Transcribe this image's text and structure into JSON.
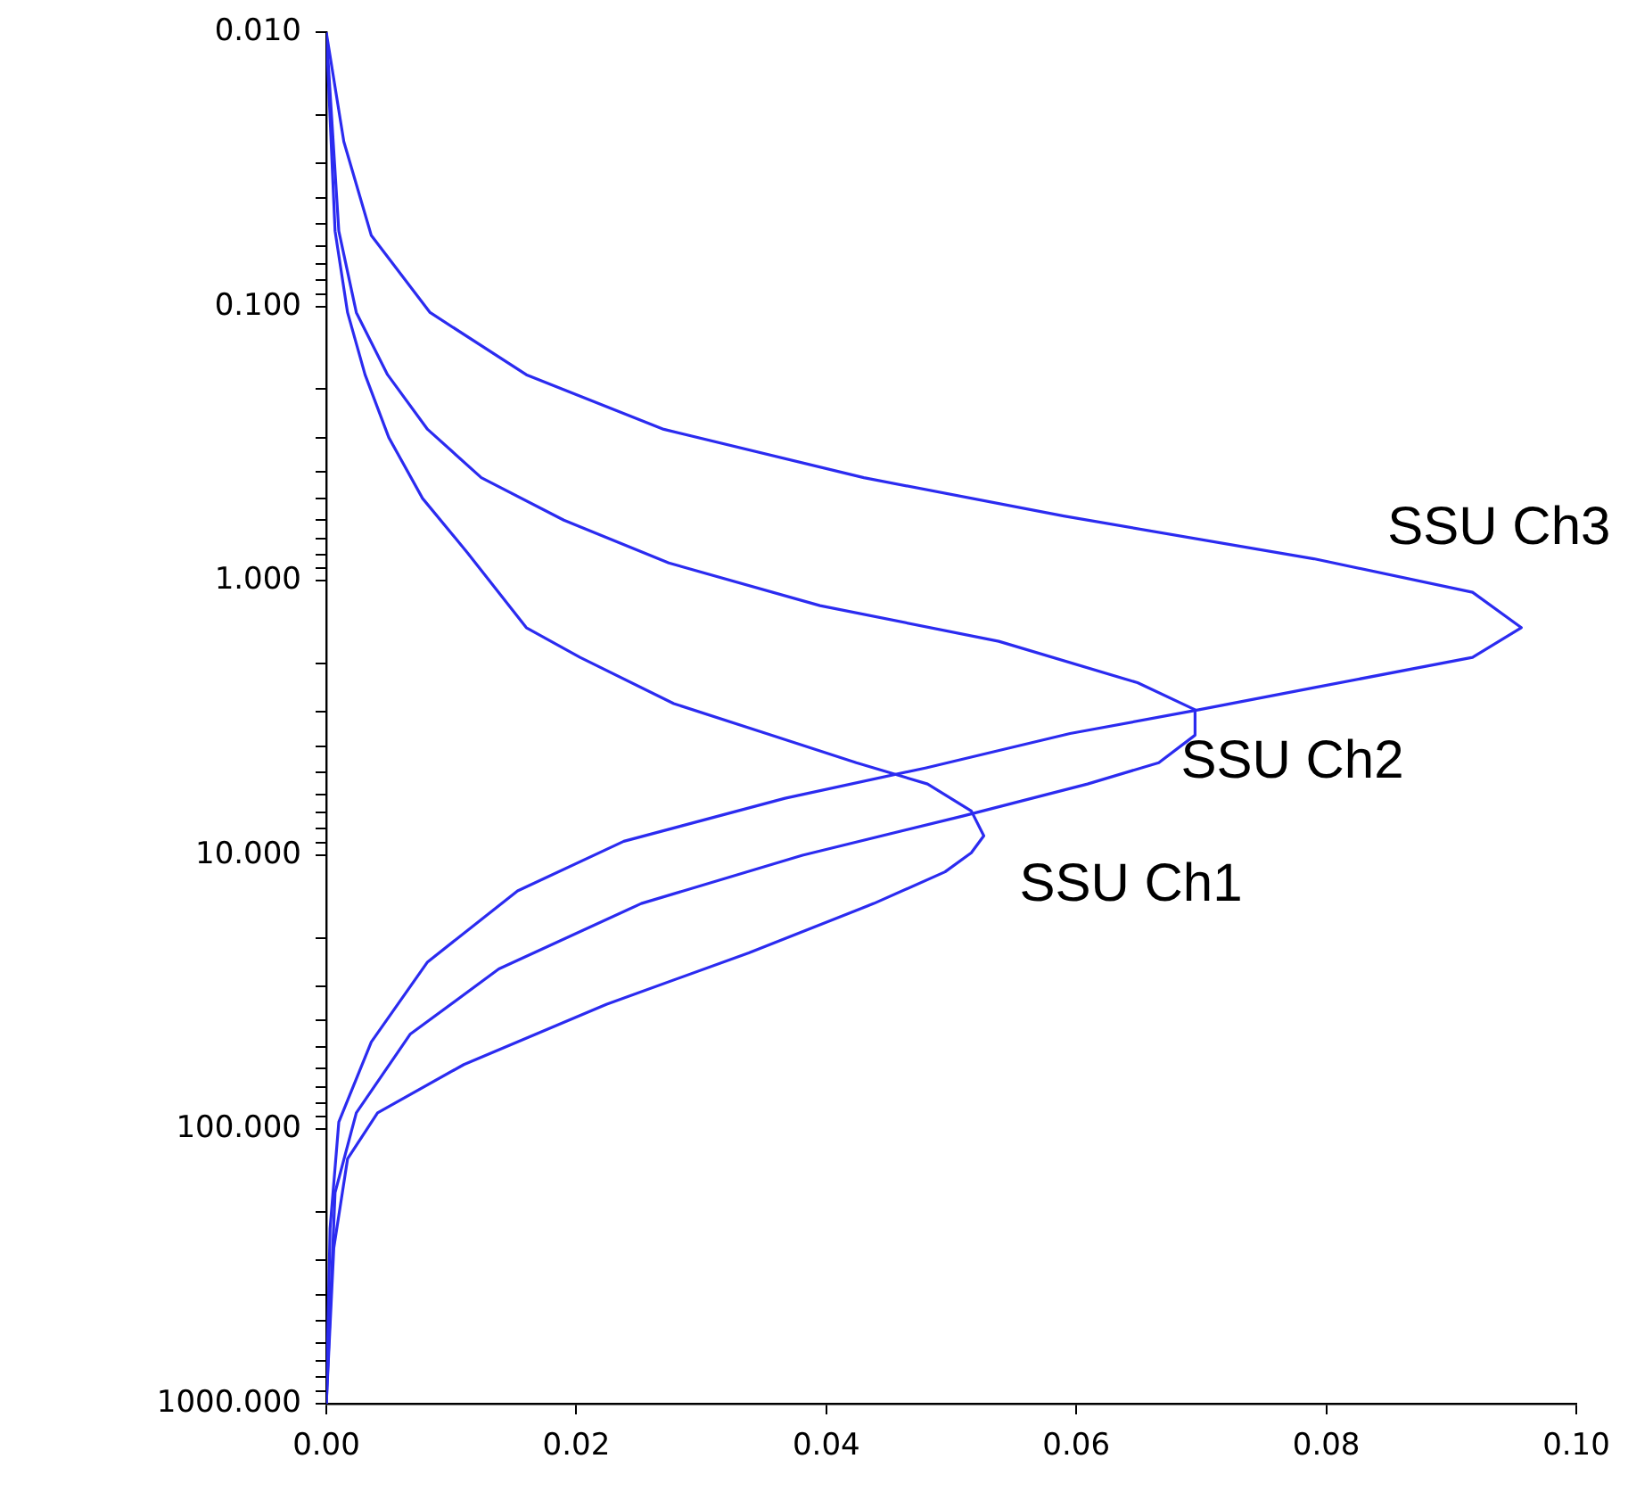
{
  "chart_data": {
    "type": "line",
    "log": "y",
    "grid": false,
    "marker": "none",
    "line_style": "solid",
    "xlim": [
      0,
      0.1
    ],
    "xticks": [
      {
        "value": 0,
        "label": "0.00"
      },
      {
        "value": 0.02,
        "label": "0.02"
      },
      {
        "value": 0.04,
        "label": "0.04"
      },
      {
        "value": 0.06,
        "label": "0.06"
      },
      {
        "value": 0.08,
        "label": "0.08"
      },
      {
        "value": 0.1,
        "label": "0.10"
      }
    ],
    "ylim": [
      1000,
      0.01
    ],
    "yticks": [
      {
        "value": 0.01,
        "label": "0.010"
      },
      {
        "value": 0.02,
        "label": null
      },
      {
        "value": 0.03,
        "label": null
      },
      {
        "value": 0.04,
        "label": null
      },
      {
        "value": 0.05,
        "label": null
      },
      {
        "value": 0.06,
        "label": null
      },
      {
        "value": 0.07,
        "label": null
      },
      {
        "value": 0.08,
        "label": null
      },
      {
        "value": 0.09,
        "label": null
      },
      {
        "value": 0.1,
        "label": "0.100"
      },
      {
        "value": 0.2,
        "label": null
      },
      {
        "value": 0.3,
        "label": null
      },
      {
        "value": 0.4,
        "label": null
      },
      {
        "value": 0.5,
        "label": null
      },
      {
        "value": 0.6,
        "label": null
      },
      {
        "value": 0.7,
        "label": null
      },
      {
        "value": 0.8,
        "label": null
      },
      {
        "value": 0.9,
        "label": null
      },
      {
        "value": 1,
        "label": "1.000"
      },
      {
        "value": 2,
        "label": null
      },
      {
        "value": 3,
        "label": null
      },
      {
        "value": 4,
        "label": null
      },
      {
        "value": 5,
        "label": null
      },
      {
        "value": 6,
        "label": null
      },
      {
        "value": 7,
        "label": null
      },
      {
        "value": 8,
        "label": null
      },
      {
        "value": 9,
        "label": null
      },
      {
        "value": 10,
        "label": "10.000"
      },
      {
        "value": 20,
        "label": null
      },
      {
        "value": 30,
        "label": null
      },
      {
        "value": 40,
        "label": null
      },
      {
        "value": 50,
        "label": null
      },
      {
        "value": 60,
        "label": null
      },
      {
        "value": 70,
        "label": null
      },
      {
        "value": 80,
        "label": null
      },
      {
        "value": 90,
        "label": null
      },
      {
        "value": 100,
        "label": "100.000"
      },
      {
        "value": 200,
        "label": null
      },
      {
        "value": 300,
        "label": null
      },
      {
        "value": 400,
        "label": null
      },
      {
        "value": 500,
        "label": null
      },
      {
        "value": 600,
        "label": null
      },
      {
        "value": 700,
        "label": null
      },
      {
        "value": 800,
        "label": null
      },
      {
        "value": 900,
        "label": null
      },
      {
        "value": 1000,
        "label": "1000.000"
      }
    ],
    "series": [
      {
        "name": "SSU Ch1",
        "color": "#2b2bf0",
        "x": [
          0,
          0.0007,
          0.0017,
          0.0031,
          0.005,
          0.0077,
          0.0113,
          0.016,
          0.0203,
          0.0278,
          0.0352,
          0.0424,
          0.0481,
          0.0516,
          0.0526,
          0.0516,
          0.0495,
          0.0438,
          0.0338,
          0.0224,
          0.011,
          0.0041,
          0.0017,
          0.0006,
          0
        ],
        "values": [
          0.01,
          0.053,
          0.105,
          0.177,
          0.3,
          0.5,
          0.79,
          1.48,
          1.9,
          2.8,
          3.6,
          4.6,
          5.5,
          6.9,
          8.5,
          9.8,
          11.5,
          15,
          22.7,
          35,
          58,
          87,
          128,
          270,
          1000
        ]
      },
      {
        "name": "SSU Ch2",
        "color": "#2b2bf0",
        "x": [
          0,
          0.001,
          0.0024,
          0.0049,
          0.0081,
          0.0124,
          0.019,
          0.0274,
          0.0395,
          0.0538,
          0.0649,
          0.0695,
          0.0695,
          0.0666,
          0.0609,
          0.0509,
          0.0381,
          0.0252,
          0.0138,
          0.0067,
          0.0024,
          0.0007,
          0
        ],
        "values": [
          0.01,
          0.053,
          0.105,
          0.177,
          0.28,
          0.42,
          0.6,
          0.86,
          1.23,
          1.66,
          2.35,
          2.95,
          3.65,
          4.6,
          5.5,
          7.2,
          10,
          15,
          26,
          45,
          87,
          170,
          1000
        ]
      },
      {
        "name": "SSU Ch3",
        "color": "#2b2bf0",
        "x": [
          0,
          0.0014,
          0.0036,
          0.0083,
          0.016,
          0.027,
          0.043,
          0.059,
          0.079,
          0.0917,
          0.0956,
          0.0917,
          0.079,
          0.0698,
          0.0595,
          0.048,
          0.0367,
          0.0238,
          0.0153,
          0.0081,
          0.0036,
          0.001,
          0.0003,
          0
        ],
        "values": [
          0.01,
          0.025,
          0.055,
          0.105,
          0.177,
          0.28,
          0.42,
          0.58,
          0.83,
          1.1,
          1.48,
          1.9,
          2.45,
          2.95,
          3.6,
          4.8,
          6.2,
          8.9,
          13.5,
          24.5,
          48,
          94,
          230,
          1000
        ]
      }
    ]
  }
}
